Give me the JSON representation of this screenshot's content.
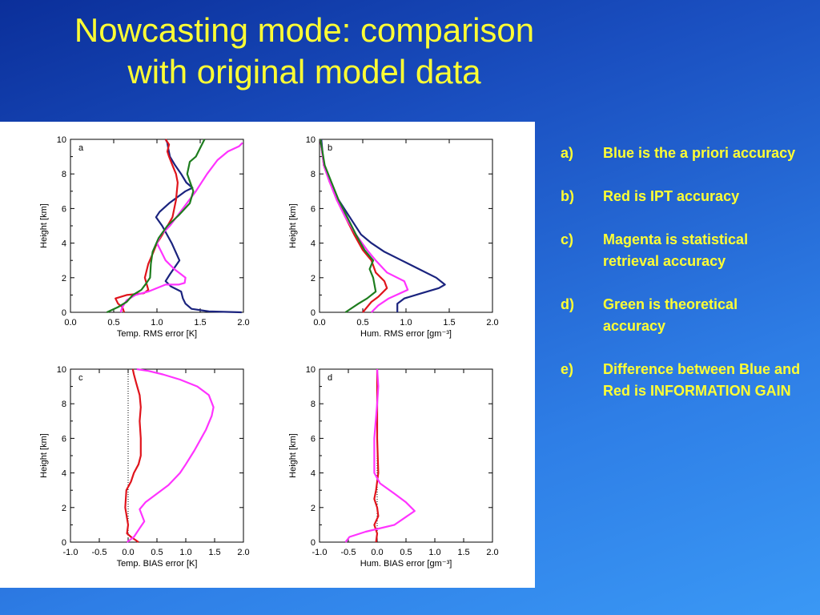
{
  "title": {
    "line1": "Nowcasting mode:  comparison",
    "line2": "with original model data"
  },
  "notes": [
    {
      "letter": "a)",
      "text": "Blue is the a priori accuracy"
    },
    {
      "letter": "b)",
      "text": "Red is IPT accuracy"
    },
    {
      "letter": "c)",
      "text": "Magenta is statistical retrieval accuracy"
    },
    {
      "letter": "d)",
      "text": "Green is theoretical accuracy"
    },
    {
      "letter": "e)",
      "text": "Difference between Blue and Red is INFORMATION GAIN"
    }
  ],
  "colors": {
    "blue": "#1a237e",
    "red": "#e0141c",
    "magenta": "#ff33ff",
    "green": "#1e7d1e",
    "title": "#ffff33",
    "axis": "#000000"
  },
  "chart_data": [
    {
      "type": "line",
      "panel_label": "a",
      "xlabel": "Temp. RMS error [K]",
      "ylabel": "Height [km]",
      "xlim": [
        0.0,
        2.0
      ],
      "ylim": [
        0,
        10
      ],
      "xticks": [
        "0.0",
        "0.5",
        "1.0",
        "1.5",
        "2.0"
      ],
      "xtick_values": [
        0.0,
        0.5,
        1.0,
        1.5,
        2.0
      ],
      "yticks": [
        "0",
        "2",
        "4",
        "6",
        "8",
        "10"
      ],
      "ytick_values": [
        0,
        2,
        4,
        6,
        8,
        10
      ],
      "zero_line": false,
      "series": [
        {
          "name": "a priori",
          "color": "blue",
          "x": [
            1.98,
            1.6,
            1.4,
            1.33,
            1.3,
            1.28,
            1.16,
            1.1,
            1.15,
            1.26,
            1.17,
            1.06,
            0.99,
            1.03,
            1.14,
            1.33,
            1.41,
            1.34,
            1.28,
            1.21,
            1.15,
            1.13,
            1.12,
            1.1
          ],
          "y": [
            0.0,
            0.05,
            0.2,
            0.5,
            0.8,
            1.2,
            1.5,
            1.8,
            2.2,
            3.0,
            4.0,
            5.0,
            5.5,
            5.8,
            6.3,
            7.0,
            7.2,
            7.5,
            8.0,
            8.5,
            9.0,
            9.5,
            9.8,
            10.0
          ]
        },
        {
          "name": "IPT",
          "color": "red",
          "x": [
            0.62,
            0.6,
            0.55,
            0.52,
            0.65,
            0.85,
            0.9,
            0.86,
            0.9,
            0.96,
            1.0,
            1.04,
            1.1,
            1.18,
            1.22,
            1.24,
            1.22,
            1.18,
            1.14,
            1.12,
            1.14,
            1.1
          ],
          "y": [
            0.0,
            0.3,
            0.5,
            0.8,
            1.0,
            1.1,
            1.3,
            2.0,
            2.8,
            3.5,
            4.0,
            4.3,
            4.8,
            5.5,
            6.5,
            7.5,
            8.0,
            8.5,
            9.0,
            9.3,
            9.7,
            10.0
          ]
        },
        {
          "name": "statistical",
          "color": "magenta",
          "x": [
            0.58,
            0.6,
            0.65,
            0.75,
            0.9,
            1.1,
            1.25,
            1.32,
            1.33,
            1.2,
            1.1,
            1.05,
            1.0,
            1.05,
            1.15,
            1.3,
            1.45,
            1.58,
            1.7,
            1.82,
            1.95,
            1.99
          ],
          "y": [
            0.0,
            0.3,
            0.7,
            1.0,
            1.2,
            1.6,
            1.6,
            1.7,
            2.0,
            2.5,
            3.0,
            3.5,
            4.0,
            4.5,
            5.0,
            6.0,
            7.0,
            8.0,
            8.8,
            9.3,
            9.6,
            9.8
          ]
        },
        {
          "name": "theoretical",
          "color": "green",
          "x": [
            0.42,
            0.55,
            0.65,
            0.72,
            0.82,
            0.88,
            0.92,
            0.93,
            0.95,
            1.02,
            1.12,
            1.25,
            1.38,
            1.42,
            1.35,
            1.38,
            1.45,
            1.5,
            1.55
          ],
          "y": [
            0.0,
            0.3,
            0.6,
            1.0,
            1.3,
            1.7,
            2.0,
            2.8,
            3.5,
            4.3,
            5.0,
            5.6,
            6.3,
            7.0,
            8.0,
            8.7,
            9.0,
            9.5,
            10.0
          ]
        }
      ]
    },
    {
      "type": "line",
      "panel_label": "b",
      "xlabel": "Hum. RMS error [gm⁻³]",
      "ylabel": "Height [km]",
      "xlim": [
        0.0,
        2.0
      ],
      "ylim": [
        0,
        10
      ],
      "xticks": [
        "0.0",
        "0.5",
        "1.0",
        "1.5",
        "2.0"
      ],
      "xtick_values": [
        0.0,
        0.5,
        1.0,
        1.5,
        2.0
      ],
      "yticks": [
        "0",
        "2",
        "4",
        "6",
        "8",
        "10"
      ],
      "ytick_values": [
        0,
        2,
        4,
        6,
        8,
        10
      ],
      "zero_line": false,
      "series": [
        {
          "name": "a priori",
          "color": "blue",
          "x": [
            0.9,
            0.9,
            0.98,
            1.18,
            1.38,
            1.45,
            1.35,
            1.15,
            0.95,
            0.75,
            0.6,
            0.48,
            0.35,
            0.22,
            0.12,
            0.05,
            0.02
          ],
          "y": [
            0.0,
            0.5,
            0.8,
            1.1,
            1.4,
            1.6,
            2.0,
            2.5,
            3.0,
            3.5,
            4.0,
            4.5,
            5.5,
            6.5,
            7.5,
            8.5,
            10.0
          ]
        },
        {
          "name": "IPT",
          "color": "red",
          "x": [
            0.5,
            0.6,
            0.68,
            0.78,
            0.75,
            0.65,
            0.6,
            0.5,
            0.4,
            0.3,
            0.2,
            0.12,
            0.05,
            0.01
          ],
          "y": [
            0.0,
            0.6,
            0.9,
            1.4,
            1.8,
            2.3,
            3.0,
            3.6,
            4.5,
            5.5,
            6.5,
            7.5,
            8.5,
            10.0
          ]
        },
        {
          "name": "statistical",
          "color": "magenta",
          "x": [
            0.6,
            0.68,
            0.8,
            1.02,
            0.98,
            0.78,
            0.65,
            0.55,
            0.42,
            0.3,
            0.2,
            0.12,
            0.05,
            0.01
          ],
          "y": [
            0.0,
            0.4,
            0.8,
            1.3,
            1.8,
            2.3,
            3.0,
            3.6,
            4.5,
            5.5,
            6.5,
            7.5,
            8.5,
            10.0
          ]
        },
        {
          "name": "theoretical",
          "color": "green",
          "x": [
            0.3,
            0.45,
            0.55,
            0.65,
            0.62,
            0.58,
            0.62,
            0.52,
            0.42,
            0.32,
            0.22,
            0.14,
            0.06,
            0.01
          ],
          "y": [
            0.0,
            0.5,
            0.8,
            1.2,
            2.0,
            2.5,
            3.0,
            3.6,
            4.5,
            5.5,
            6.5,
            7.5,
            8.5,
            10.0
          ]
        }
      ]
    },
    {
      "type": "line",
      "panel_label": "c",
      "xlabel": "Temp. BIAS error [K]",
      "ylabel": "Height [km]",
      "xlim": [
        -1.0,
        2.0
      ],
      "ylim": [
        0,
        10
      ],
      "xticks": [
        "-1.0",
        "-0.5",
        "0.0",
        "0.5",
        "1.0",
        "1.5",
        "2.0"
      ],
      "xtick_values": [
        -1.0,
        -0.5,
        0.0,
        0.5,
        1.0,
        1.5,
        2.0
      ],
      "yticks": [
        "0",
        "2",
        "4",
        "6",
        "8",
        "10"
      ],
      "ytick_values": [
        0,
        2,
        4,
        6,
        8,
        10
      ],
      "zero_line": true,
      "series": [
        {
          "name": "IPT",
          "color": "red",
          "x": [
            0.18,
            0.05,
            -0.02,
            0.0,
            -0.05,
            -0.03,
            0.05,
            0.1,
            0.18,
            0.22,
            0.22,
            0.2,
            0.22,
            0.2,
            0.14,
            0.1,
            0.08
          ],
          "y": [
            0.0,
            0.3,
            0.5,
            1.0,
            2.0,
            3.0,
            3.5,
            4.0,
            4.5,
            5.0,
            6.0,
            7.0,
            7.8,
            8.5,
            9.2,
            9.7,
            10.0
          ]
        },
        {
          "name": "statistical",
          "color": "magenta",
          "x": [
            -0.02,
            0.1,
            0.2,
            0.28,
            0.2,
            0.3,
            0.5,
            0.7,
            0.9,
            1.0,
            1.15,
            1.35,
            1.45,
            1.48,
            1.4,
            1.2,
            0.9,
            0.6,
            0.35,
            0.15
          ],
          "y": [
            0.0,
            0.3,
            0.8,
            1.2,
            1.9,
            2.3,
            2.8,
            3.3,
            4.0,
            4.5,
            5.3,
            6.5,
            7.3,
            7.8,
            8.5,
            9.0,
            9.4,
            9.7,
            9.9,
            10.0
          ]
        }
      ]
    },
    {
      "type": "line",
      "panel_label": "d",
      "xlabel": "Hum. BIAS error [gm⁻³]",
      "ylabel": "Height [km]",
      "xlim": [
        -1.0,
        2.0
      ],
      "ylim": [
        0,
        10
      ],
      "xticks": [
        "-1.0",
        "-0.5",
        "0.0",
        "0.5",
        "1.0",
        "1.5",
        "2.0"
      ],
      "xtick_values": [
        -1.0,
        -0.5,
        0.0,
        0.5,
        1.0,
        1.5,
        2.0
      ],
      "yticks": [
        "0",
        "2",
        "4",
        "6",
        "8",
        "10"
      ],
      "ytick_values": [
        0,
        2,
        4,
        6,
        8,
        10
      ],
      "zero_line": true,
      "series": [
        {
          "name": "IPT",
          "color": "red",
          "x": [
            -0.02,
            0.0,
            -0.05,
            0.02,
            0.0,
            -0.05,
            -0.02,
            0.02,
            0.0,
            0.0
          ],
          "y": [
            0.0,
            0.5,
            1.0,
            1.5,
            2.0,
            2.5,
            3.0,
            4.0,
            6.0,
            10.0
          ]
        },
        {
          "name": "statistical",
          "color": "magenta",
          "x": [
            -0.55,
            -0.48,
            -0.2,
            0.3,
            0.65,
            0.5,
            0.3,
            0.05,
            -0.05,
            -0.05,
            0.0,
            0.02,
            0.0
          ],
          "y": [
            0.0,
            0.3,
            0.6,
            1.0,
            1.8,
            2.3,
            2.8,
            3.4,
            4.0,
            6.0,
            8.0,
            9.0,
            10.0
          ]
        }
      ]
    }
  ]
}
